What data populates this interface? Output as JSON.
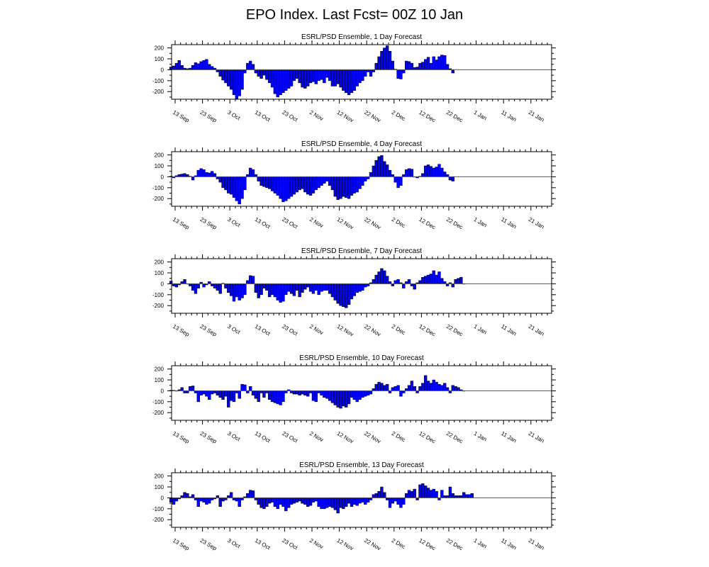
{
  "title": "EPO Index. Last Fcst= 00Z 10 Jan",
  "colors": {
    "bar_fill": "#0000ff",
    "bar_edge": "#000000",
    "zero_line": "#555555",
    "frame": "#000000"
  },
  "chart_data": [
    {
      "type": "bar",
      "title": "ESRL/PSD Ensemble, 1 Day Forecast",
      "x_start": "10 Sep",
      "x_end": "22 Jan",
      "ylim": [
        -270,
        230
      ],
      "yticks": [
        200,
        100,
        0,
        -100,
        -200
      ],
      "xticks": [
        "13 Sep",
        "23 Sep",
        "3 Oct",
        "13 Oct",
        "23 Oct",
        "2 Nov",
        "12 Nov",
        "22 Nov",
        "2 Dec",
        "12 Dec",
        "22 Dec",
        "1 Jan",
        "11 Jan",
        "21 Jan"
      ],
      "grid": false,
      "values": [
        25,
        35,
        60,
        85,
        40,
        15,
        10,
        15,
        40,
        65,
        55,
        75,
        85,
        95,
        50,
        30,
        15,
        -20,
        -60,
        -95,
        -120,
        -150,
        -180,
        -230,
        -270,
        -240,
        -180,
        -30,
        60,
        80,
        50,
        -30,
        -60,
        -80,
        -50,
        -90,
        -120,
        -160,
        -220,
        -250,
        -230,
        -210,
        -190,
        -170,
        -150,
        -100,
        -80,
        -120,
        -160,
        -170,
        -150,
        -120,
        -110,
        -130,
        -100,
        -90,
        -120,
        -70,
        -100,
        -150,
        -150,
        -130,
        -160,
        -190,
        -210,
        -230,
        -210,
        -190,
        -150,
        -120,
        -100,
        -60,
        -20,
        -60,
        -20,
        60,
        120,
        170,
        200,
        220,
        170,
        80,
        5,
        -80,
        -85,
        -30,
        80,
        75,
        60,
        20,
        25,
        60,
        70,
        95,
        115,
        60,
        120,
        90,
        120,
        135,
        130,
        50,
        10,
        -30
      ]
    },
    {
      "type": "bar",
      "title": "ESRL/PSD Ensemble, 4 Day Forecast",
      "x_start": "10 Sep",
      "x_end": "22 Jan",
      "ylim": [
        -270,
        230
      ],
      "yticks": [
        200,
        100,
        0,
        -100,
        -200
      ],
      "xticks": [
        "13 Sep",
        "23 Sep",
        "3 Oct",
        "13 Oct",
        "23 Oct",
        "2 Nov",
        "12 Nov",
        "22 Nov",
        "2 Dec",
        "12 Dec",
        "22 Dec",
        "1 Jan",
        "11 Jan",
        "21 Jan"
      ],
      "grid": false,
      "values": [
        5,
        -10,
        10,
        20,
        25,
        30,
        20,
        5,
        -30,
        10,
        60,
        75,
        65,
        40,
        35,
        50,
        30,
        -20,
        -50,
        -100,
        -120,
        -150,
        -160,
        -190,
        -220,
        -250,
        -200,
        -120,
        20,
        80,
        65,
        20,
        -40,
        -80,
        -90,
        -100,
        -110,
        -130,
        -150,
        -170,
        -200,
        -230,
        -220,
        -200,
        -180,
        -160,
        -140,
        -120,
        -110,
        -140,
        -160,
        -170,
        -150,
        -120,
        -100,
        -80,
        -60,
        -40,
        -80,
        -120,
        -180,
        -210,
        -200,
        -180,
        -190,
        -200,
        -170,
        -150,
        -140,
        -110,
        -80,
        -40,
        -20,
        40,
        100,
        150,
        185,
        195,
        140,
        110,
        60,
        20,
        -50,
        -100,
        -80,
        20,
        65,
        75,
        70,
        0,
        -10,
        5,
        30,
        100,
        110,
        95,
        80,
        90,
        115,
        80,
        45,
        20,
        -30,
        -40
      ]
    },
    {
      "type": "bar",
      "title": "ESRL/PSD Ensemble, 7 Day Forecast",
      "x_start": "10 Sep",
      "x_end": "22 Jan",
      "ylim": [
        -270,
        230
      ],
      "yticks": [
        200,
        100,
        0,
        -100,
        -200
      ],
      "xticks": [
        "13 Sep",
        "23 Sep",
        "3 Oct",
        "13 Oct",
        "23 Oct",
        "2 Nov",
        "12 Nov",
        "22 Nov",
        "2 Dec",
        "12 Dec",
        "22 Dec",
        "1 Jan",
        "11 Jan",
        "21 Jan"
      ],
      "grid": false,
      "values": [
        25,
        -20,
        -30,
        -10,
        20,
        40,
        0,
        -20,
        -60,
        -90,
        -40,
        15,
        -30,
        -10,
        20,
        -20,
        -40,
        -60,
        -90,
        5,
        -40,
        -80,
        -110,
        -160,
        -120,
        -150,
        -130,
        -100,
        30,
        75,
        70,
        -80,
        -130,
        -100,
        -40,
        -60,
        -120,
        -100,
        -120,
        -150,
        -170,
        -160,
        -100,
        -70,
        -90,
        -110,
        -60,
        -120,
        -80,
        -50,
        -30,
        -70,
        -90,
        -60,
        -100,
        -70,
        -60,
        -60,
        -90,
        -120,
        -150,
        -180,
        -200,
        -210,
        -220,
        -190,
        -140,
        -110,
        -80,
        -70,
        -60,
        -30,
        -20,
        10,
        40,
        80,
        110,
        140,
        120,
        70,
        20,
        -20,
        30,
        40,
        10,
        -40,
        20,
        40,
        -20,
        -50,
        10,
        30,
        60,
        70,
        80,
        90,
        120,
        80,
        110,
        50,
        20,
        -20,
        10,
        -30,
        40,
        50,
        60,
        0
      ]
    },
    {
      "type": "bar",
      "title": "ESRL/PSD Ensemble, 10 Day Forecast",
      "x_start": "10 Sep",
      "x_end": "22 Jan",
      "ylim": [
        -270,
        230
      ],
      "yticks": [
        200,
        100,
        0,
        -100,
        -200
      ],
      "xticks": [
        "13 Sep",
        "23 Sep",
        "3 Oct",
        "13 Oct",
        "23 Oct",
        "2 Nov",
        "12 Nov",
        "22 Nov",
        "2 Dec",
        "12 Dec",
        "22 Dec",
        "1 Jan",
        "11 Jan",
        "21 Jan"
      ],
      "grid": false,
      "values": [
        5,
        5,
        0,
        10,
        30,
        -20,
        -20,
        40,
        45,
        -20,
        -100,
        -40,
        -30,
        -50,
        -80,
        -30,
        -20,
        -40,
        -60,
        -80,
        -50,
        -150,
        -90,
        -100,
        -20,
        -70,
        60,
        55,
        -20,
        40,
        -40,
        -70,
        -100,
        -20,
        -60,
        -20,
        -80,
        -100,
        -110,
        -120,
        -130,
        -100,
        -20,
        10,
        -20,
        -30,
        -30,
        -40,
        -30,
        -40,
        -50,
        -20,
        -90,
        -100,
        -20,
        -40,
        -60,
        -70,
        -90,
        -110,
        -130,
        -150,
        -160,
        -140,
        -150,
        -120,
        -60,
        -80,
        -100,
        -80,
        -60,
        -50,
        -40,
        -30,
        20,
        60,
        80,
        70,
        50,
        60,
        -20,
        30,
        40,
        50,
        -50,
        -20,
        20,
        50,
        90,
        40,
        -20,
        40,
        70,
        140,
        90,
        70,
        100,
        80,
        60,
        50,
        70,
        30,
        -20,
        50,
        40,
        30,
        10,
        0
      ]
    },
    {
      "type": "bar",
      "title": "ESRL/PSD Ensemble, 13 Day Forecast",
      "x_start": "10 Sep",
      "x_end": "22 Jan",
      "ylim": [
        -270,
        230
      ],
      "yticks": [
        200,
        100,
        0,
        -100,
        -200
      ],
      "xticks": [
        "13 Sep",
        "23 Sep",
        "3 Oct",
        "13 Oct",
        "23 Oct",
        "2 Nov",
        "12 Nov",
        "22 Nov",
        "2 Dec",
        "12 Dec",
        "22 Dec",
        "1 Jan",
        "11 Jan",
        "21 Jan"
      ],
      "grid": false,
      "values": [
        -40,
        -60,
        -30,
        -10,
        20,
        50,
        40,
        10,
        30,
        -20,
        -80,
        -30,
        -40,
        -60,
        -50,
        -20,
        -10,
        20,
        -80,
        -30,
        -20,
        20,
        50,
        -20,
        -30,
        -80,
        -20,
        10,
        40,
        70,
        65,
        -20,
        -60,
        -90,
        -100,
        -80,
        -50,
        -40,
        -80,
        -100,
        -60,
        -80,
        -120,
        -90,
        -60,
        -50,
        -40,
        -30,
        -50,
        -60,
        -80,
        -70,
        -40,
        -30,
        -80,
        -100,
        -100,
        -90,
        -80,
        -90,
        -110,
        -140,
        -90,
        -100,
        -80,
        -50,
        -80,
        -60,
        -70,
        -50,
        -40,
        -60,
        -40,
        -20,
        30,
        40,
        60,
        100,
        50,
        -20,
        -90,
        -50,
        -30,
        -60,
        -90,
        -60,
        40,
        70,
        60,
        80,
        -20,
        120,
        130,
        110,
        90,
        70,
        80,
        60,
        -20,
        70,
        20,
        20,
        100,
        40,
        20,
        20,
        20,
        50,
        30,
        30,
        40
      ]
    }
  ]
}
